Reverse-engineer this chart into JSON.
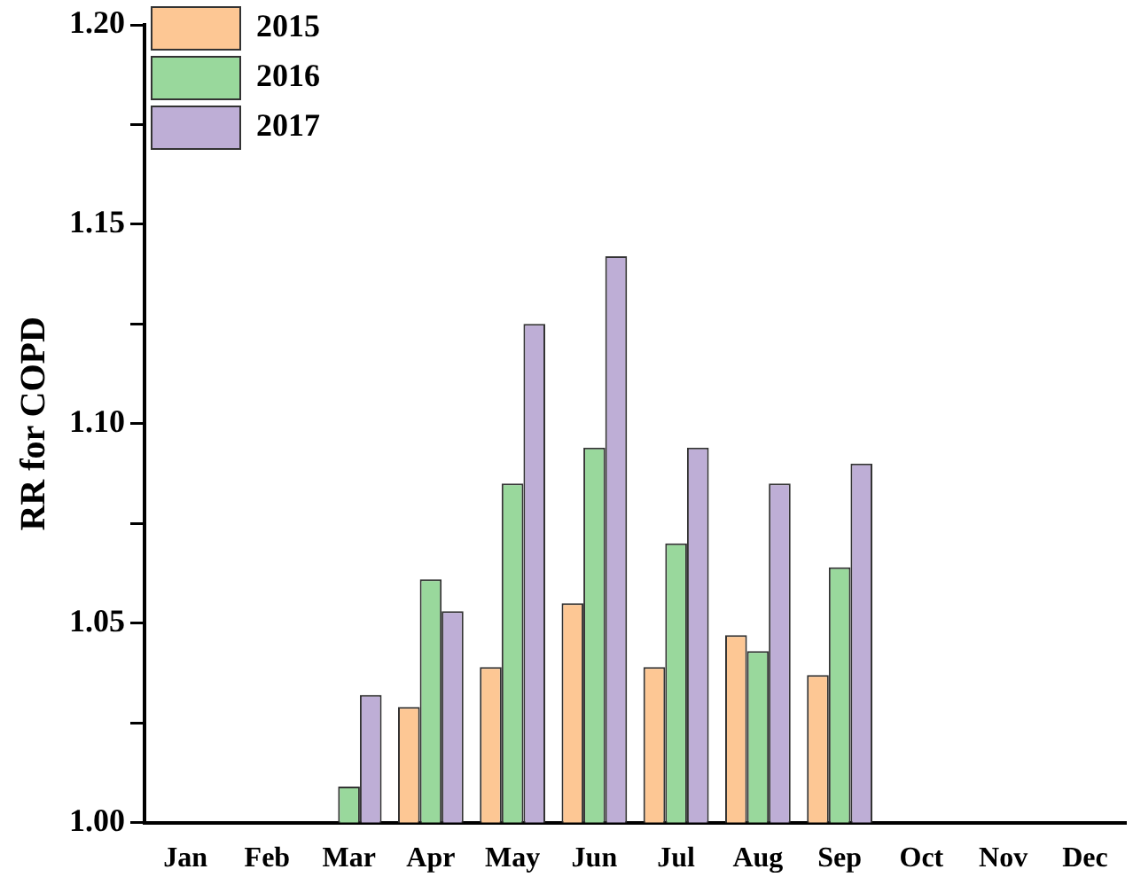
{
  "chart_data": {
    "type": "bar",
    "ylabel": "RR for COPD",
    "categories": [
      "Jan",
      "Feb",
      "Mar",
      "Apr",
      "May",
      "Jun",
      "Jul",
      "Aug",
      "Sep",
      "Oct",
      "Nov",
      "Dec"
    ],
    "series": [
      {
        "name": "2015",
        "color": "#fdc794",
        "values": [
          null,
          null,
          null,
          1.029,
          1.039,
          1.055,
          1.039,
          1.047,
          1.037,
          null,
          null,
          null
        ]
      },
      {
        "name": "2016",
        "color": "#99d89c",
        "values": [
          null,
          null,
          1.009,
          1.061,
          1.085,
          1.094,
          1.07,
          1.043,
          1.064,
          null,
          null,
          null
        ]
      },
      {
        "name": "2017",
        "color": "#beaed6",
        "values": [
          null,
          null,
          1.032,
          1.053,
          1.125,
          1.142,
          1.094,
          1.085,
          1.09,
          null,
          null,
          null
        ]
      }
    ],
    "ylim": [
      1.0,
      1.2
    ],
    "yticks": [
      "1.00",
      {
        "value": 1.025,
        "label": null
      },
      1.05,
      {
        "value": 1.075,
        "label": null
      },
      "1.10",
      {
        "value": 1.125,
        "label": null
      },
      1.15,
      {
        "value": 1.175,
        "label": null
      },
      "1.20"
    ],
    "grid": false,
    "legend": "top left"
  }
}
